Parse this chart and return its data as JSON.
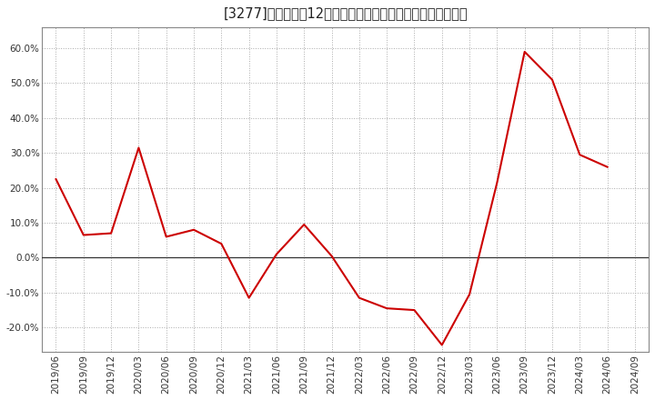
{
  "title": "[3277]　売上高の12か月移動合計の対前年同期増減率の推移",
  "line_color": "#cc0000",
  "bg_color": "#ffffff",
  "plot_bg_color": "#ffffff",
  "grid_color": "#aaaaaa",
  "zero_line_color": "#333333",
  "dates": [
    "2019/06",
    "2019/09",
    "2019/12",
    "2020/03",
    "2020/06",
    "2020/09",
    "2020/12",
    "2021/03",
    "2021/06",
    "2021/09",
    "2021/12",
    "2022/03",
    "2022/06",
    "2022/09",
    "2022/12",
    "2023/03",
    "2023/06",
    "2023/09",
    "2023/12",
    "2024/03",
    "2024/06",
    "2024/09"
  ],
  "values": [
    0.225,
    0.065,
    0.07,
    0.315,
    0.06,
    0.08,
    0.04,
    -0.115,
    0.01,
    0.095,
    0.005,
    -0.115,
    -0.145,
    -0.15,
    -0.25,
    -0.105,
    0.215,
    0.59,
    0.51,
    0.295,
    0.26,
    null
  ],
  "ylim_min": -0.27,
  "ylim_max": 0.66,
  "yticks": [
    -0.2,
    -0.1,
    0.0,
    0.1,
    0.2,
    0.3,
    0.4,
    0.5,
    0.6
  ],
  "title_fontsize": 10.5,
  "tick_fontsize": 7.5
}
